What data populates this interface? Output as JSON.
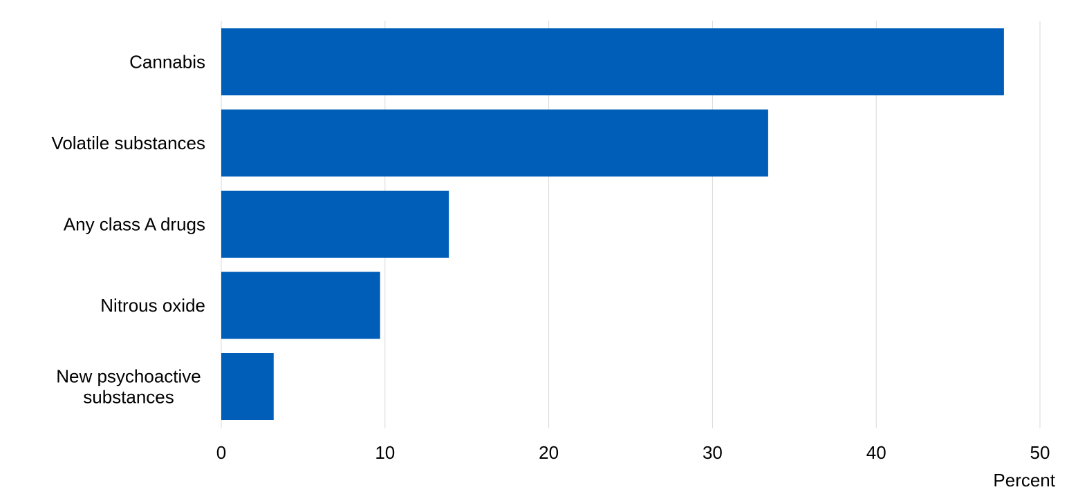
{
  "chart_data": {
    "type": "bar",
    "orientation": "horizontal",
    "categories": [
      "Cannabis",
      "Volatile substances",
      "Any class A drugs",
      "Nitrous oxide",
      "New psychoactive substances"
    ],
    "category_lines": [
      [
        "Cannabis"
      ],
      [
        "Volatile substances"
      ],
      [
        "Any class A drugs"
      ],
      [
        "Nitrous oxide"
      ],
      [
        "New psychoactive",
        "substances"
      ]
    ],
    "values": [
      47.8,
      33.4,
      13.9,
      9.7,
      3.2
    ],
    "xlim": [
      0,
      50
    ],
    "xticks": [
      "0",
      "10",
      "20",
      "30",
      "40",
      "50"
    ],
    "xlabel": "Percent",
    "ylabel": "",
    "title": "",
    "grid": "vertical",
    "legend": "none",
    "bar_color": "#005EB8"
  }
}
